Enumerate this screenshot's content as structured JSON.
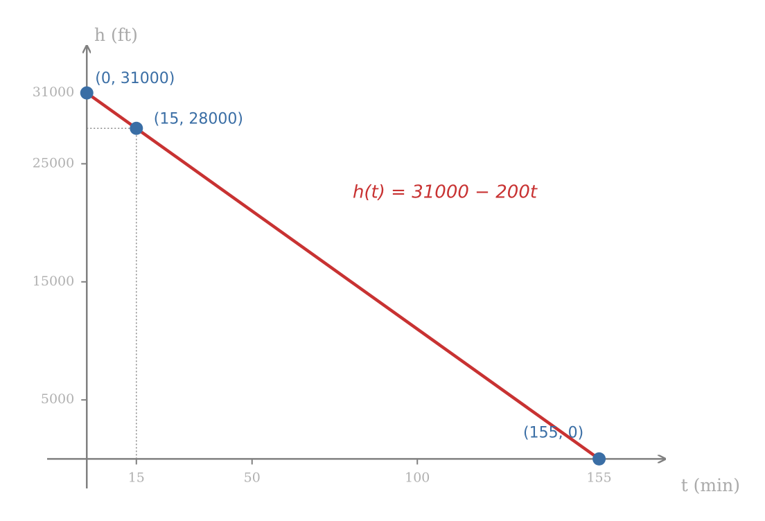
{
  "chart_data": {
    "type": "line",
    "x": [
      0,
      15,
      155
    ],
    "values": [
      31000,
      28000,
      0
    ],
    "value_labels": [
      "(0, 31000)",
      "(15, 28000)",
      "(155, 0)"
    ],
    "line_color": "#c83232",
    "point_color": "#3a6ea5",
    "annotation": "h(t) = 31000 − 200t",
    "xlabel": "t (min)",
    "ylabel": "h (ft)",
    "xlim": [
      -12,
      175
    ],
    "ylim": [
      -2500,
      35000
    ],
    "xticks": [
      15,
      50,
      100,
      155
    ],
    "yticks": [
      5000,
      15000,
      25000,
      31000
    ]
  }
}
